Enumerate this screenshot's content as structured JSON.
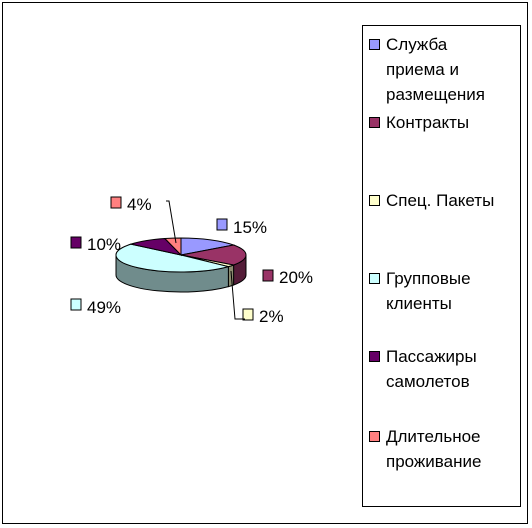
{
  "chart_data": {
    "type": "pie",
    "title": "",
    "slices": [
      {
        "label": "Служба\nприема и\nразмещения",
        "value": 15,
        "pct_label": "15%",
        "color": "#9999ff"
      },
      {
        "label": "Контракты",
        "value": 20,
        "pct_label": "20%",
        "color": "#993366"
      },
      {
        "label": "Спец. Пакеты",
        "value": 2,
        "pct_label": "2%",
        "color": "#ffffcc"
      },
      {
        "label": "Групповые\nклиенты",
        "value": 49,
        "pct_label": "49%",
        "color": "#ccffff"
      },
      {
        "label": "Пассажиры\nсамолетов",
        "value": 10,
        "pct_label": "10%",
        "color": "#660066"
      },
      {
        "label": "Длительное\nпроживание",
        "value": 4,
        "pct_label": "4%",
        "color": "#ff8080"
      }
    ],
    "style": "3d-pie",
    "legend_position": "right"
  }
}
